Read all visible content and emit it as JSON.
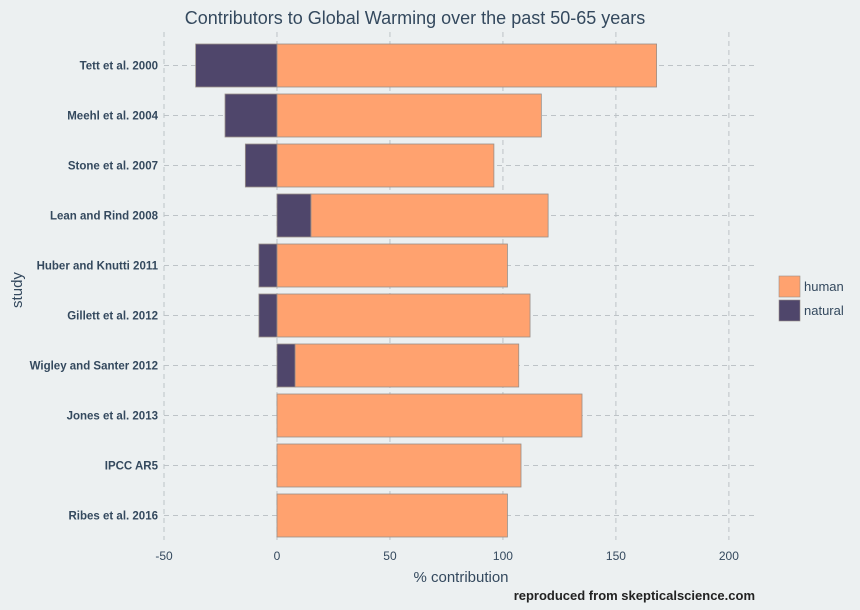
{
  "chart_data": {
    "type": "bar",
    "orientation": "horizontal",
    "stacked": true,
    "title": "Contributors to Global Warming over the past 50-65 years",
    "xlabel": "% contribution",
    "ylabel": "study",
    "caption": "reproduced from skepticalscience.com",
    "xlim": [
      -50,
      212
    ],
    "xticks": [
      -50,
      0,
      50,
      100,
      150,
      200
    ],
    "grid": true,
    "legend": "right",
    "categories": [
      "Tett et al. 2000",
      "Meehl et al. 2004",
      "Stone et al. 2007",
      "Lean and Rind 2008",
      "Huber and Knutti 2011",
      "Gillett et al. 2012",
      "Wigley and Santer 2012",
      "Jones et al. 2013",
      "IPCC AR5",
      "Ribes et al. 2016"
    ],
    "series": [
      {
        "name": "human",
        "color": "#FFA26F",
        "values": [
          168,
          117,
          96,
          105,
          102,
          112,
          99,
          135,
          108,
          102
        ]
      },
      {
        "name": "natural",
        "color": "#4F466B",
        "values": [
          -36,
          -23,
          -14,
          15,
          -8,
          -8,
          8,
          0,
          0,
          0
        ]
      }
    ]
  }
}
